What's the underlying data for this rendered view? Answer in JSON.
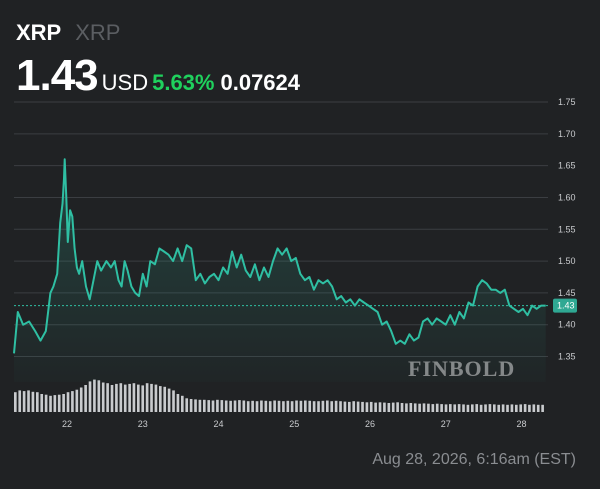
{
  "header": {
    "symbol": "XRP",
    "name": "XRP",
    "price": "1.43",
    "currency": "USD",
    "change_pct": "5.63%",
    "change_abs": "0.07624"
  },
  "footer": {
    "timestamp": "Aug 28, 2026, 6:16am (EST)"
  },
  "watermark": "FINBOLD",
  "colors": {
    "background": "#202224",
    "line": "#2fbfa3",
    "positive": "#1fd15d",
    "grid": "#3b3e42",
    "volume": "#c9cbce",
    "price_tag": "#2fa893"
  },
  "chart_data": {
    "type": "area",
    "ylim": [
      1.31,
      1.75
    ],
    "xlim": [
      21.3,
      28.35
    ],
    "y_ticks": [
      "1.75",
      "1.70",
      "1.65",
      "1.60",
      "1.55",
      "1.50",
      "1.45",
      "1.40",
      "1.35"
    ],
    "x_ticks": [
      "22",
      "23",
      "24",
      "25",
      "26",
      "27",
      "28"
    ],
    "current_price_label": "1.43",
    "current_price": 1.43,
    "series": [
      {
        "x": [
          21.3,
          21.35,
          21.42,
          21.5,
          21.58,
          21.65,
          21.72,
          21.78,
          21.82,
          21.87,
          21.91,
          21.94,
          21.96,
          21.97,
          21.99,
          22.01,
          22.04,
          22.07,
          22.1,
          22.13,
          22.16,
          22.2,
          22.25,
          22.3,
          22.35,
          22.4,
          22.45,
          22.52,
          22.58,
          22.63,
          22.68,
          22.72,
          22.76,
          22.8,
          22.85,
          22.9,
          22.95,
          23.0,
          23.05,
          23.1,
          23.16,
          23.22,
          23.28,
          23.34,
          23.4,
          23.46,
          23.52,
          23.58,
          23.64,
          23.7,
          23.76,
          23.82,
          23.88,
          23.94,
          24.0,
          24.06,
          24.12,
          24.18,
          24.24,
          24.3,
          24.36,
          24.42,
          24.48,
          24.54,
          24.6,
          24.66,
          24.72,
          24.78,
          24.84,
          24.9,
          24.96,
          25.02,
          25.08,
          25.14,
          25.2,
          25.26,
          25.32,
          25.38,
          25.44,
          25.5,
          25.56,
          25.62,
          25.68,
          25.74,
          25.8,
          25.86,
          25.92,
          25.98,
          26.04,
          26.1,
          26.16,
          26.22,
          26.28,
          26.34,
          26.4,
          26.46,
          26.52,
          26.58,
          26.64,
          26.7,
          26.76,
          26.82,
          26.88,
          26.94,
          27.0,
          27.06,
          27.12,
          27.18,
          27.24,
          27.3,
          27.36,
          27.42,
          27.48,
          27.54,
          27.6,
          27.66,
          27.72,
          27.78,
          27.84,
          27.9,
          27.96,
          28.02,
          28.08,
          28.14,
          28.2,
          28.26,
          28.32
        ],
        "y": [
          1.355,
          1.42,
          1.4,
          1.405,
          1.39,
          1.375,
          1.39,
          1.45,
          1.46,
          1.48,
          1.56,
          1.59,
          1.63,
          1.66,
          1.6,
          1.53,
          1.58,
          1.57,
          1.52,
          1.49,
          1.48,
          1.5,
          1.46,
          1.44,
          1.47,
          1.5,
          1.485,
          1.5,
          1.49,
          1.5,
          1.47,
          1.46,
          1.5,
          1.485,
          1.46,
          1.45,
          1.445,
          1.48,
          1.46,
          1.5,
          1.495,
          1.52,
          1.515,
          1.51,
          1.5,
          1.52,
          1.5,
          1.525,
          1.52,
          1.47,
          1.48,
          1.465,
          1.475,
          1.48,
          1.47,
          1.49,
          1.48,
          1.515,
          1.49,
          1.51,
          1.485,
          1.475,
          1.495,
          1.47,
          1.49,
          1.475,
          1.5,
          1.52,
          1.51,
          1.52,
          1.5,
          1.505,
          1.48,
          1.47,
          1.475,
          1.455,
          1.47,
          1.465,
          1.47,
          1.46,
          1.44,
          1.445,
          1.435,
          1.44,
          1.43,
          1.44,
          1.435,
          1.43,
          1.425,
          1.42,
          1.4,
          1.405,
          1.39,
          1.37,
          1.375,
          1.37,
          1.385,
          1.375,
          1.38,
          1.405,
          1.41,
          1.4,
          1.41,
          1.405,
          1.4,
          1.415,
          1.4,
          1.42,
          1.41,
          1.435,
          1.43,
          1.46,
          1.47,
          1.465,
          1.455,
          1.455,
          1.45,
          1.455,
          1.43,
          1.425,
          1.42,
          1.425,
          1.415,
          1.43,
          1.425,
          1.43,
          1.43
        ]
      }
    ],
    "volume": {
      "x_range": [
        21.3,
        28.32
      ],
      "relative_heights": [
        0.55,
        0.6,
        0.58,
        0.6,
        0.56,
        0.55,
        0.5,
        0.48,
        0.45,
        0.47,
        0.48,
        0.5,
        0.55,
        0.58,
        0.62,
        0.68,
        0.75,
        0.85,
        0.9,
        0.88,
        0.82,
        0.8,
        0.75,
        0.78,
        0.8,
        0.76,
        0.78,
        0.8,
        0.76,
        0.74,
        0.8,
        0.78,
        0.76,
        0.72,
        0.7,
        0.65,
        0.6,
        0.5,
        0.45,
        0.38,
        0.36,
        0.35,
        0.34,
        0.34,
        0.33,
        0.32,
        0.34,
        0.33,
        0.32,
        0.31,
        0.32,
        0.33,
        0.32,
        0.3,
        0.31,
        0.3,
        0.32,
        0.31,
        0.3,
        0.32,
        0.31,
        0.3,
        0.31,
        0.3,
        0.32,
        0.31,
        0.32,
        0.31,
        0.3,
        0.3,
        0.31,
        0.32,
        0.3,
        0.31,
        0.3,
        0.29,
        0.28,
        0.3,
        0.29,
        0.28,
        0.27,
        0.28,
        0.26,
        0.27,
        0.26,
        0.25,
        0.26,
        0.27,
        0.25,
        0.24,
        0.25,
        0.24,
        0.23,
        0.24,
        0.23,
        0.22,
        0.23,
        0.22,
        0.21,
        0.22,
        0.21,
        0.22,
        0.21,
        0.2,
        0.21,
        0.22,
        0.2,
        0.21,
        0.22,
        0.21,
        0.2,
        0.21,
        0.2,
        0.21,
        0.2,
        0.21,
        0.22,
        0.2,
        0.21,
        0.2,
        0.2
      ]
    },
    "grid": true
  }
}
